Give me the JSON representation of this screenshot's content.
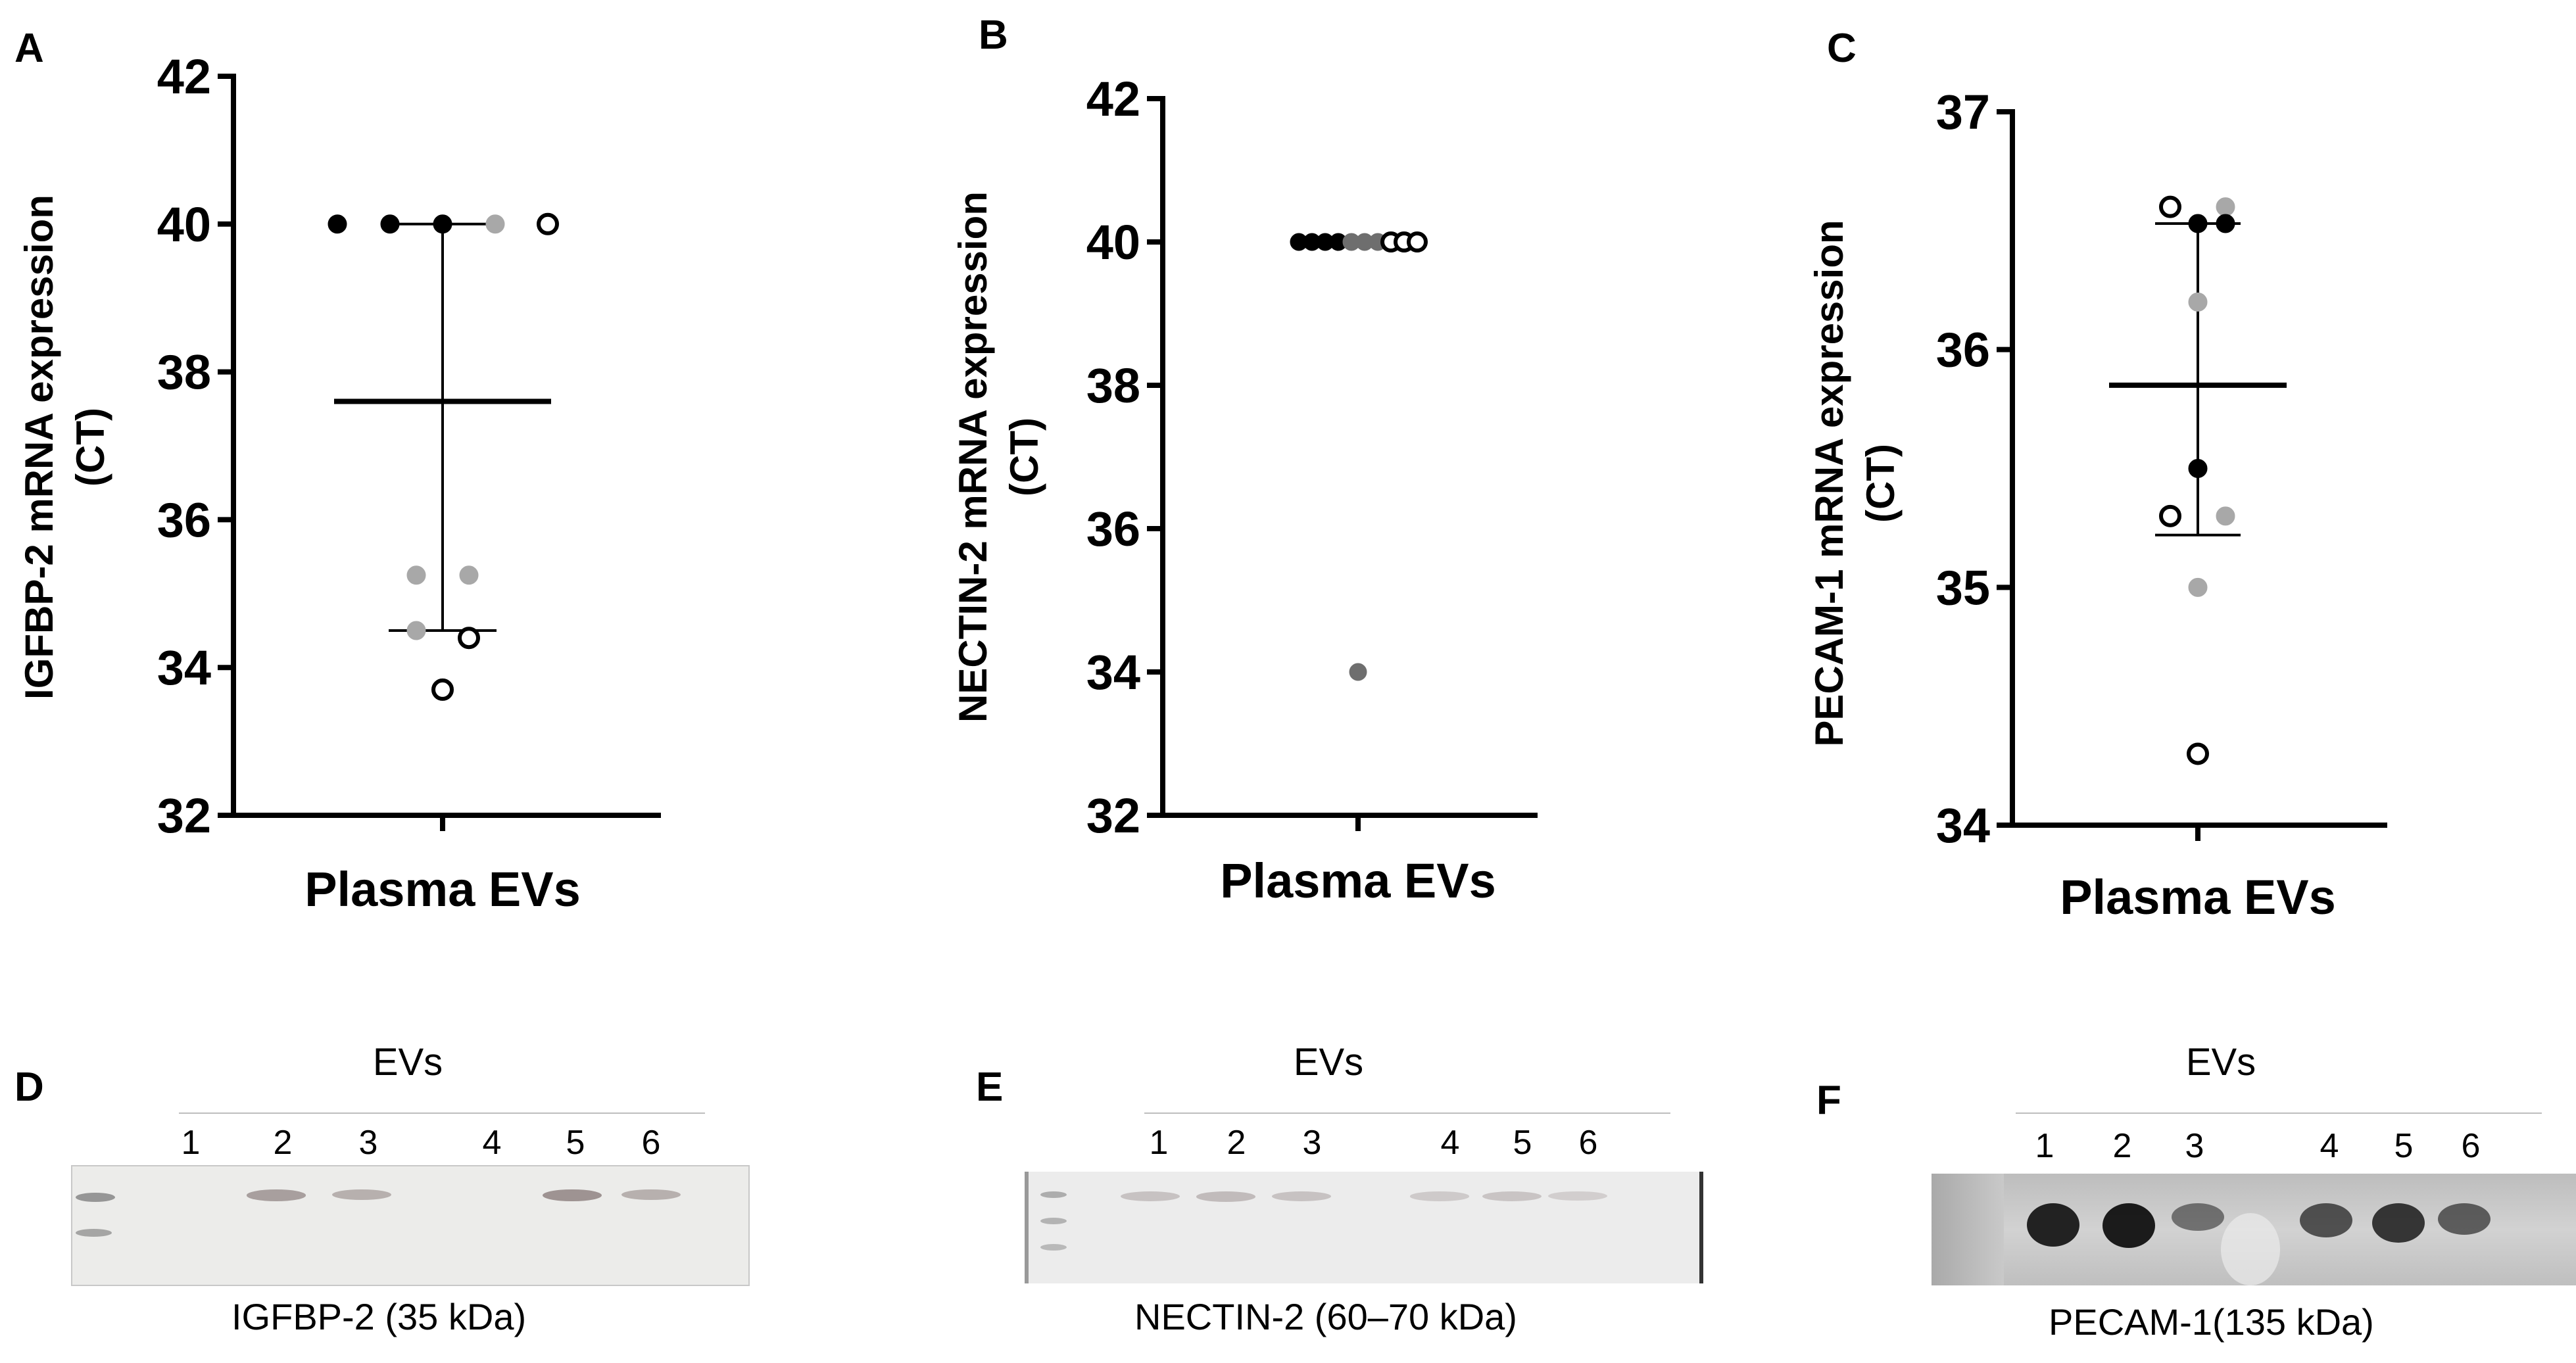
{
  "colors": {
    "black_point": "#000000",
    "dark_gray_point": "#6e6e6e",
    "light_gray_point": "#a8a8a8",
    "open_point_fill": "#ffffff",
    "axis": "#000000"
  },
  "chart_data": [
    {
      "panel": "A",
      "type": "scatter",
      "title": "",
      "xlabel": "Plasma EVs",
      "ylabel_line1": "IGFBP-2 mRNA expression",
      "ylabel_line2": "(CT)",
      "ylim": [
        32,
        42
      ],
      "yticks": [
        32,
        34,
        36,
        38,
        40,
        42
      ],
      "category": "Plasma EVs",
      "mean": 37.6,
      "error_bar": [
        34.5,
        40.0
      ],
      "points": [
        {
          "value": 40.0,
          "style": "black",
          "offset": -4
        },
        {
          "value": 40.0,
          "style": "black",
          "offset": -2
        },
        {
          "value": 40.0,
          "style": "black",
          "offset": 0
        },
        {
          "value": 40.0,
          "style": "light-gray",
          "offset": 2
        },
        {
          "value": 40.0,
          "style": "open",
          "offset": 4
        },
        {
          "value": 35.25,
          "style": "light-gray",
          "offset": -1
        },
        {
          "value": 35.25,
          "style": "light-gray",
          "offset": 1
        },
        {
          "value": 34.5,
          "style": "light-gray",
          "offset": -1
        },
        {
          "value": 34.4,
          "style": "open",
          "offset": 1
        },
        {
          "value": 33.7,
          "style": "open",
          "offset": 0
        }
      ]
    },
    {
      "panel": "B",
      "type": "scatter",
      "title": "",
      "xlabel": "Plasma EVs",
      "ylabel_line1": "NECTIN-2 mRNA expression",
      "ylabel_line2": "(CT)",
      "ylim": [
        32,
        42
      ],
      "yticks": [
        32,
        34,
        36,
        38,
        40,
        42
      ],
      "category": "Plasma EVs",
      "mean": null,
      "error_bar": null,
      "points": [
        {
          "value": 40.0,
          "style": "black",
          "offset": -4.5
        },
        {
          "value": 40.0,
          "style": "black",
          "offset": -3.5
        },
        {
          "value": 40.0,
          "style": "black",
          "offset": -2.5
        },
        {
          "value": 40.0,
          "style": "black",
          "offset": -1.5
        },
        {
          "value": 40.0,
          "style": "dark-gray",
          "offset": -0.5
        },
        {
          "value": 40.0,
          "style": "dark-gray",
          "offset": 0.5
        },
        {
          "value": 40.0,
          "style": "dark-gray",
          "offset": 1.5
        },
        {
          "value": 40.0,
          "style": "open",
          "offset": 2.5
        },
        {
          "value": 40.0,
          "style": "open",
          "offset": 3.5
        },
        {
          "value": 40.0,
          "style": "open",
          "offset": 4.5
        },
        {
          "value": 34.0,
          "style": "dark-gray",
          "offset": 0
        }
      ]
    },
    {
      "panel": "C",
      "type": "scatter",
      "title": "",
      "xlabel": "Plasma EVs",
      "ylabel_line1": "PECAM-1 mRNA expression",
      "ylabel_line2": "(CT)",
      "ylim": [
        34,
        37
      ],
      "yticks": [
        34,
        35,
        36,
        37
      ],
      "category": "Plasma EVs",
      "mean": 35.85,
      "error_bar": [
        35.22,
        36.53
      ],
      "points": [
        {
          "value": 36.6,
          "style": "open",
          "offset": -1
        },
        {
          "value": 36.6,
          "style": "light-gray",
          "offset": 1
        },
        {
          "value": 36.53,
          "style": "black",
          "offset": 0
        },
        {
          "value": 36.53,
          "style": "black",
          "offset": 1
        },
        {
          "value": 36.2,
          "style": "light-gray",
          "offset": 0
        },
        {
          "value": 35.5,
          "style": "black",
          "offset": 0
        },
        {
          "value": 35.3,
          "style": "open",
          "offset": -1
        },
        {
          "value": 35.3,
          "style": "light-gray",
          "offset": 1
        },
        {
          "value": 35.0,
          "style": "light-gray",
          "offset": 0
        },
        {
          "value": 34.3,
          "style": "open",
          "offset": 0
        }
      ]
    }
  ],
  "blots": [
    {
      "panel": "D",
      "header": "EVs",
      "lanes": [
        "1",
        "2",
        "3",
        "4",
        "5",
        "6"
      ],
      "caption": "IGFBP-2 (35 kDa)",
      "band_intensity": [
        0.0,
        0.45,
        0.3,
        0.0,
        0.55,
        0.3
      ]
    },
    {
      "panel": "E",
      "header": "EVs",
      "lanes": [
        "1",
        "2",
        "3",
        "4",
        "5",
        "6"
      ],
      "caption": "NECTIN-2 (60–70 kDa)",
      "band_intensity": [
        0.15,
        0.2,
        0.15,
        0.08,
        0.12,
        0.04
      ]
    },
    {
      "panel": "F",
      "header": "EVs",
      "lanes": [
        "1",
        "2",
        "3",
        "4",
        "5",
        "6"
      ],
      "caption": "PECAM-1(135 kDa)",
      "band_intensity": [
        0.9,
        0.95,
        0.3,
        0.55,
        0.75,
        0.45
      ]
    }
  ]
}
